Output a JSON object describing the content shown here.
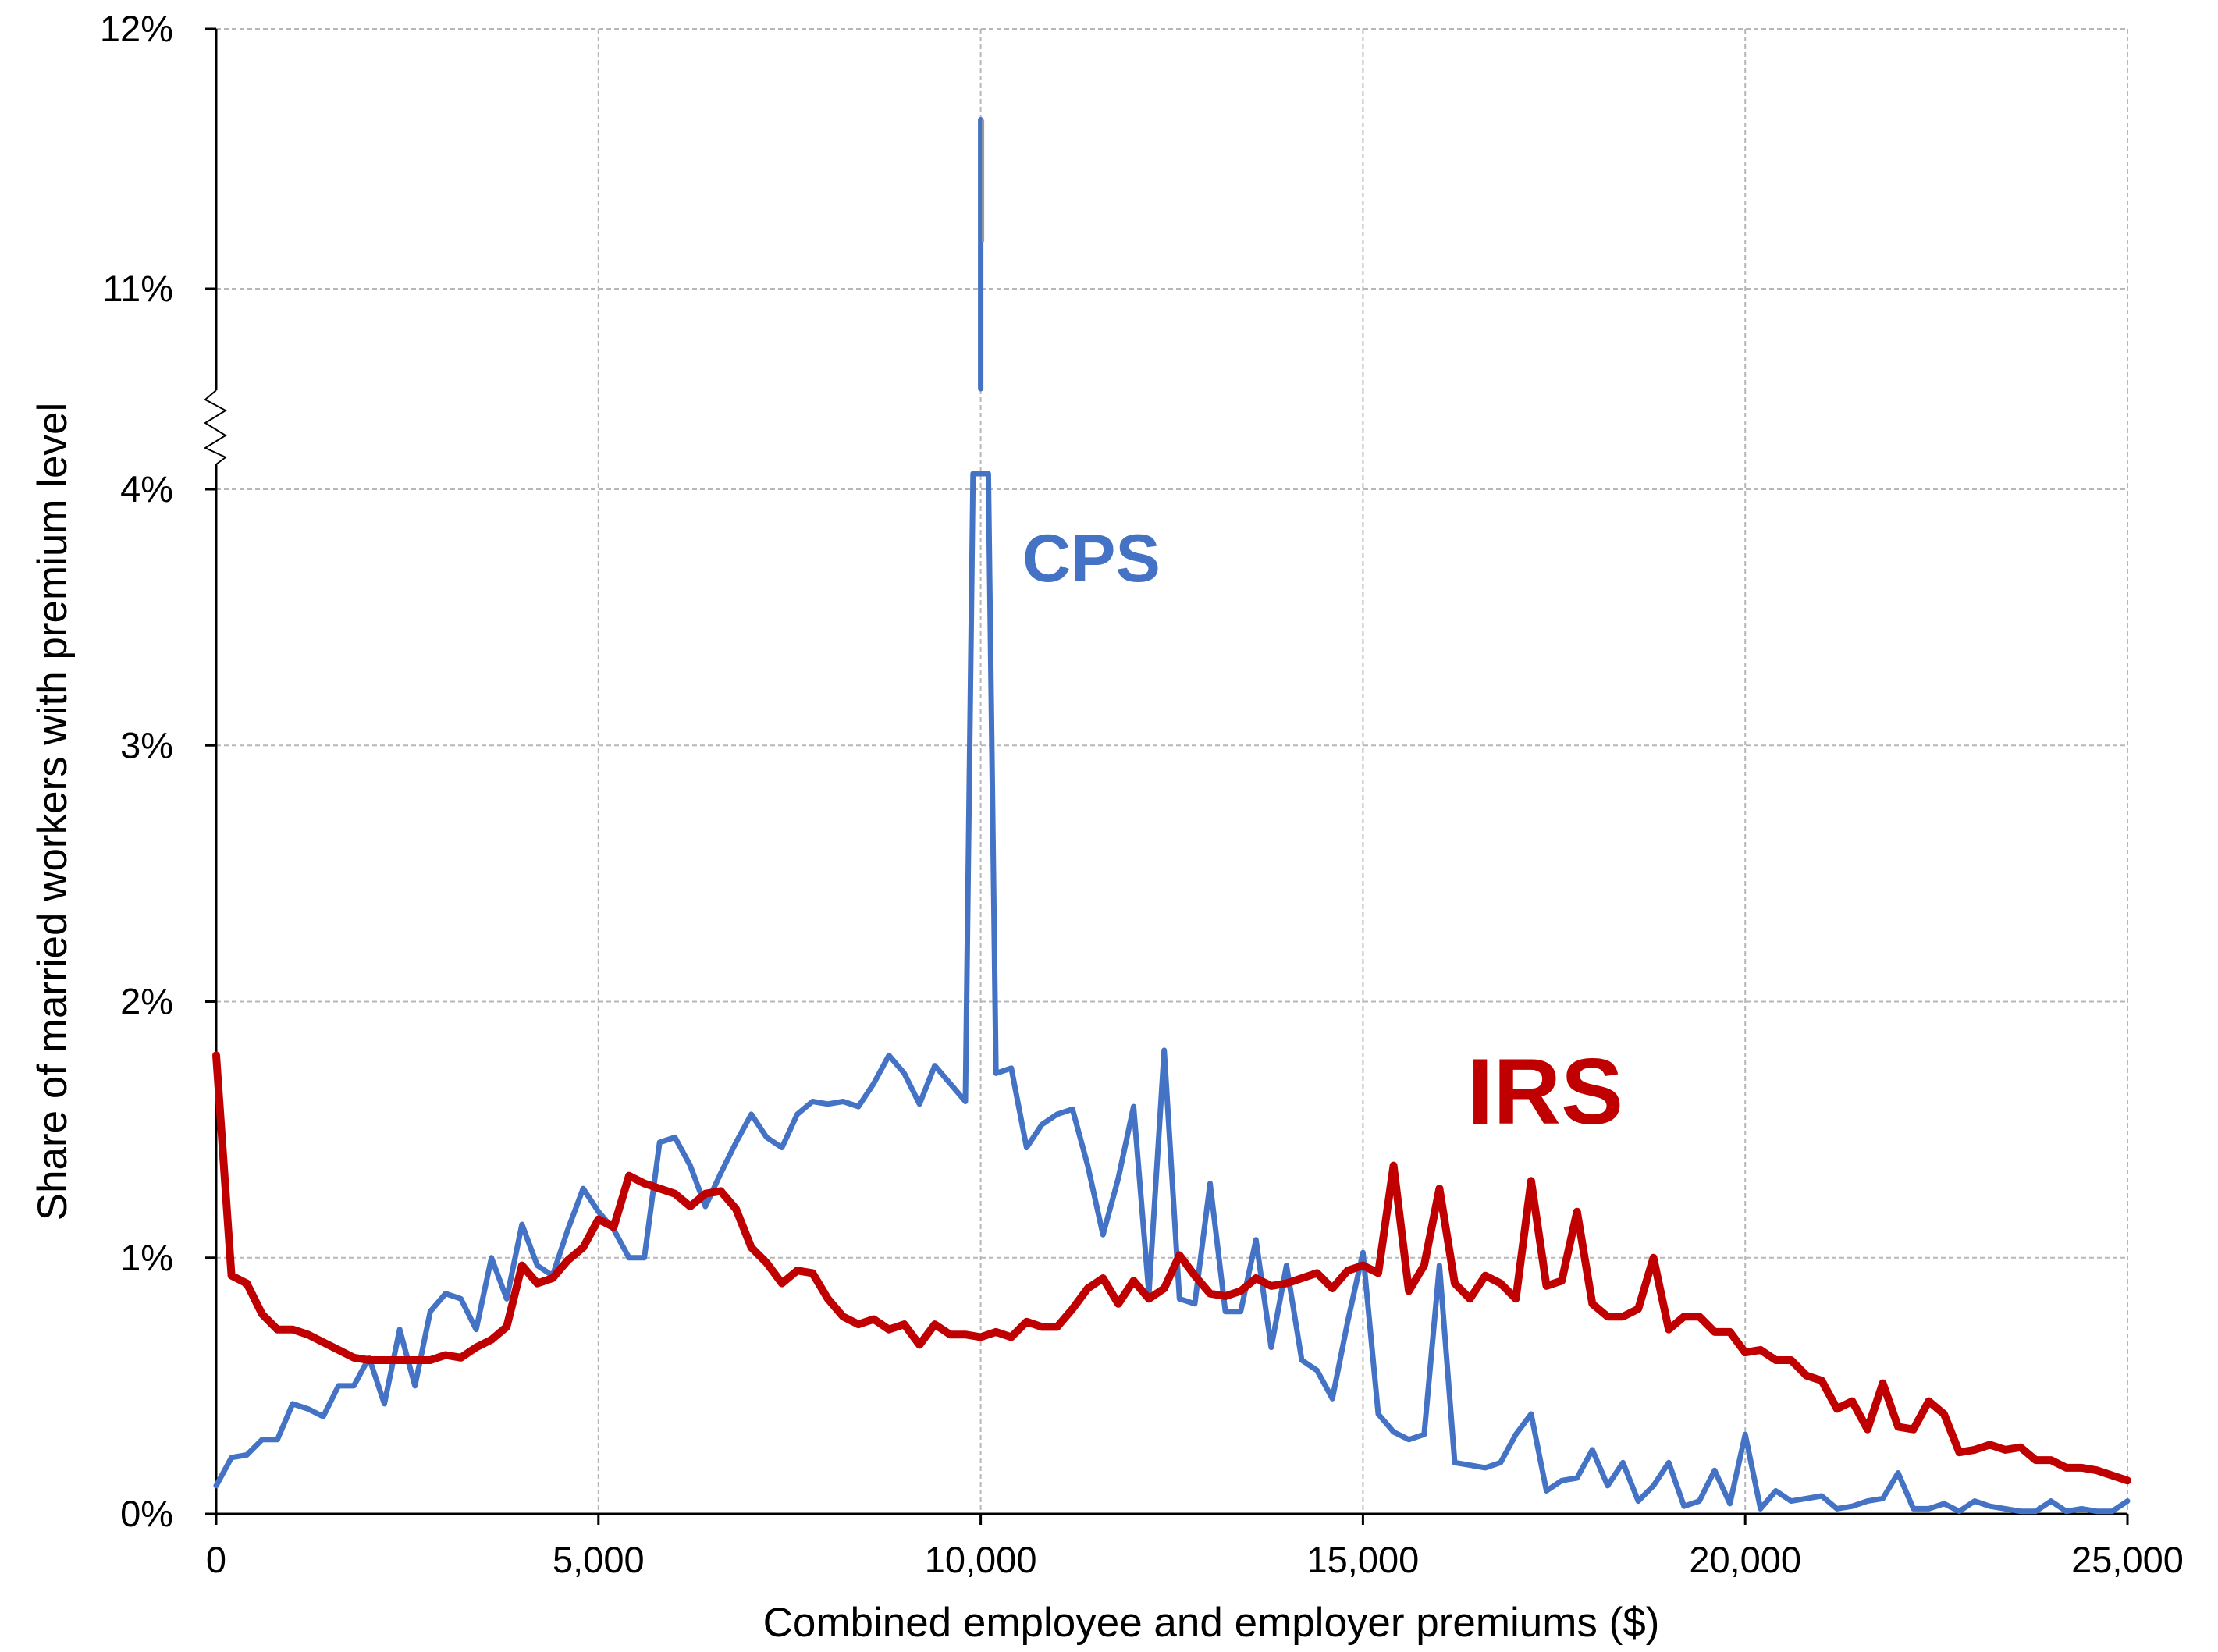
{
  "chart_data": {
    "type": "line",
    "title": "",
    "xlabel": "Combined employee and employer premiums ($)",
    "ylabel": "Share of married workers with premium level",
    "xlim": [
      0,
      25000
    ],
    "ylim_lower": [
      0,
      4
    ],
    "ylim_upper": [
      11,
      12
    ],
    "axis_break": "between 4% and 11% on y-axis",
    "grid": true,
    "x_ticks": [
      0,
      5000,
      10000,
      15000,
      20000,
      25000
    ],
    "x_tick_labels": [
      "0",
      "5,000",
      "10,000",
      "15,000",
      "20,000",
      "25,000"
    ],
    "y_ticks": [
      0,
      1,
      2,
      3,
      4,
      11,
      12
    ],
    "y_tick_labels": [
      "0%",
      "1%",
      "2%",
      "3%",
      "4%",
      "11%",
      "12%"
    ],
    "series": [
      {
        "name": "CPS",
        "color": "#4472c4",
        "x": [
          0,
          200,
          400,
          600,
          800,
          1000,
          1200,
          1400,
          1600,
          1800,
          2000,
          2200,
          2400,
          2600,
          2800,
          3000,
          3200,
          3400,
          3600,
          3800,
          4000,
          4200,
          4400,
          4600,
          4800,
          5000,
          5200,
          5400,
          5600,
          5800,
          6000,
          6200,
          6400,
          6600,
          6800,
          7000,
          7200,
          7400,
          7600,
          7800,
          8000,
          8200,
          8400,
          8600,
          8800,
          9000,
          9200,
          9400,
          9600,
          9800,
          9900,
          10000,
          10100,
          10200,
          10400,
          10600,
          10800,
          11000,
          11200,
          11400,
          11600,
          11800,
          12000,
          12200,
          12400,
          12600,
          12800,
          13000,
          13200,
          13400,
          13600,
          13800,
          14000,
          14200,
          14400,
          14600,
          14800,
          15000,
          15200,
          15400,
          15600,
          15800,
          16000,
          16200,
          16400,
          16600,
          16800,
          17000,
          17200,
          17400,
          17600,
          17800,
          18000,
          18200,
          18400,
          18600,
          18800,
          19000,
          19200,
          19400,
          19600,
          19800,
          20000,
          20200,
          20400,
          20600,
          20800,
          21000,
          21200,
          21400,
          21600,
          21800,
          22000,
          22200,
          22400,
          22600,
          22800,
          23000,
          23200,
          23400,
          23600,
          23800,
          24000,
          24200,
          24400,
          24600,
          24800,
          25000
        ],
        "y": [
          0.11,
          0.22,
          0.23,
          0.29,
          0.29,
          0.43,
          0.41,
          0.38,
          0.5,
          0.5,
          0.61,
          0.43,
          0.72,
          0.5,
          0.79,
          0.86,
          0.84,
          0.72,
          1.0,
          0.84,
          1.13,
          0.97,
          0.93,
          1.11,
          1.27,
          1.18,
          1.11,
          1.0,
          1.0,
          1.45,
          1.47,
          1.36,
          1.2,
          1.33,
          1.45,
          1.56,
          1.47,
          1.43,
          1.56,
          1.61,
          1.6,
          1.61,
          1.59,
          1.68,
          1.79,
          1.72,
          1.6,
          1.75,
          1.68,
          1.61,
          4.1,
          11.65,
          4.1,
          1.72,
          1.74,
          1.43,
          1.52,
          1.56,
          1.58,
          1.36,
          1.09,
          1.31,
          1.59,
          0.86,
          1.81,
          0.84,
          0.82,
          1.29,
          0.79,
          0.79,
          1.07,
          0.65,
          0.97,
          0.6,
          0.56,
          0.45,
          0.75,
          1.02,
          0.39,
          0.32,
          0.29,
          0.31,
          0.97,
          0.2,
          0.19,
          0.18,
          0.2,
          0.31,
          0.39,
          0.09,
          0.13,
          0.14,
          0.25,
          0.11,
          0.2,
          0.05,
          0.11,
          0.2,
          0.03,
          0.05,
          0.17,
          0.04,
          0.31,
          0.02,
          0.09,
          0.05,
          0.06,
          0.07,
          0.02,
          0.03,
          0.05,
          0.06,
          0.16,
          0.02,
          0.02,
          0.04,
          0.01,
          0.05,
          0.03,
          0.02,
          0.01,
          0.01,
          0.05,
          0.01,
          0.02,
          0.01,
          0.01,
          0.05
        ]
      },
      {
        "name": "IRS",
        "color": "#c00000",
        "x": [
          0,
          200,
          400,
          600,
          800,
          1000,
          1200,
          1400,
          1600,
          1800,
          2000,
          2200,
          2400,
          2600,
          2800,
          3000,
          3200,
          3400,
          3600,
          3800,
          4000,
          4200,
          4400,
          4600,
          4800,
          5000,
          5200,
          5400,
          5600,
          5800,
          6000,
          6200,
          6400,
          6600,
          6800,
          7000,
          7200,
          7400,
          7600,
          7800,
          8000,
          8200,
          8400,
          8600,
          8800,
          9000,
          9200,
          9400,
          9600,
          9800,
          10000,
          10200,
          10400,
          10600,
          10800,
          11000,
          11200,
          11400,
          11600,
          11800,
          12000,
          12200,
          12400,
          12600,
          12800,
          13000,
          13200,
          13400,
          13600,
          13800,
          14000,
          14200,
          14400,
          14600,
          14800,
          15000,
          15200,
          15400,
          15600,
          15800,
          16000,
          16200,
          16400,
          16600,
          16800,
          17000,
          17200,
          17400,
          17600,
          17800,
          18000,
          18200,
          18400,
          18600,
          18800,
          19000,
          19200,
          19400,
          19600,
          19800,
          20000,
          20200,
          20400,
          20600,
          20800,
          21000,
          21200,
          21400,
          21600,
          21800,
          22000,
          22200,
          22400,
          22600,
          22800,
          23000,
          23200,
          23400,
          23600,
          23800,
          24000,
          24200,
          24400,
          24600,
          24800,
          25000
        ],
        "y": [
          1.79,
          0.93,
          0.9,
          0.78,
          0.72,
          0.72,
          0.7,
          0.67,
          0.64,
          0.61,
          0.6,
          0.6,
          0.6,
          0.6,
          0.6,
          0.62,
          0.61,
          0.65,
          0.68,
          0.73,
          0.97,
          0.9,
          0.92,
          0.99,
          1.04,
          1.15,
          1.12,
          1.32,
          1.29,
          1.27,
          1.25,
          1.2,
          1.25,
          1.26,
          1.19,
          1.04,
          0.98,
          0.9,
          0.95,
          0.94,
          0.84,
          0.77,
          0.74,
          0.76,
          0.72,
          0.74,
          0.66,
          0.74,
          0.7,
          0.7,
          0.69,
          0.71,
          0.69,
          0.75,
          0.73,
          0.73,
          0.8,
          0.88,
          0.92,
          0.82,
          0.91,
          0.84,
          0.88,
          1.01,
          0.93,
          0.86,
          0.85,
          0.87,
          0.92,
          0.89,
          0.9,
          0.92,
          0.94,
          0.88,
          0.95,
          0.97,
          0.94,
          1.36,
          0.87,
          0.97,
          1.27,
          0.9,
          0.84,
          0.93,
          0.9,
          0.84,
          1.3,
          0.89,
          0.91,
          1.18,
          0.82,
          0.77,
          0.77,
          0.8,
          1.0,
          0.72,
          0.77,
          0.77,
          0.71,
          0.71,
          0.63,
          0.64,
          0.6,
          0.6,
          0.54,
          0.52,
          0.41,
          0.44,
          0.33,
          0.51,
          0.34,
          0.33,
          0.44,
          0.39,
          0.24,
          0.25,
          0.27,
          0.25,
          0.26,
          0.21,
          0.21,
          0.18,
          0.18,
          0.17,
          0.15,
          0.13
        ]
      }
    ],
    "annotations": [
      {
        "text": "CPS",
        "color": "#4472c4"
      },
      {
        "text": "IRS",
        "color": "#c00000"
      }
    ]
  }
}
